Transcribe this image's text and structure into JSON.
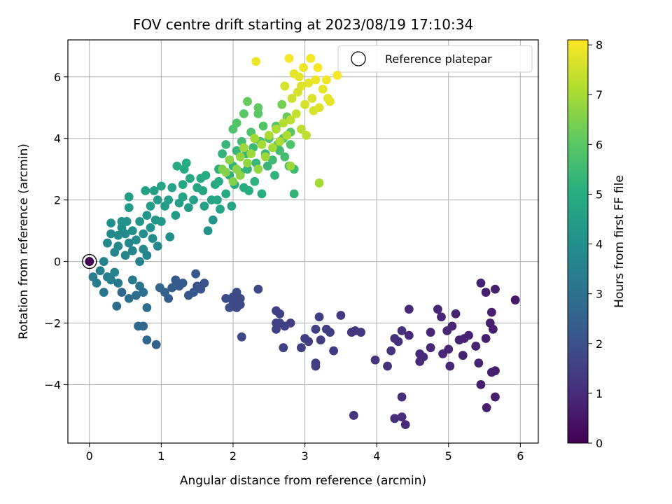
{
  "chart_data": {
    "type": "scatter",
    "title": "FOV centre drift starting at 2023/08/19 17:10:34",
    "xlabel": "Angular distance from reference (arcmin)",
    "ylabel": "Rotation from reference (arcmin)",
    "xlim": [
      -0.3,
      6.25
    ],
    "ylim": [
      -5.9,
      7.2
    ],
    "xticks": [
      0,
      1,
      2,
      3,
      4,
      5,
      6
    ],
    "yticks": [
      -4,
      -2,
      0,
      2,
      4,
      6
    ],
    "xtick_labels": [
      "0",
      "1",
      "2",
      "3",
      "4",
      "5",
      "6"
    ],
    "ytick_labels": [
      "−4",
      "−2",
      "0",
      "2",
      "4",
      "6"
    ],
    "grid": true,
    "colormap": "viridis",
    "colorbar": {
      "label": "Hours from first FF file",
      "range": [
        0,
        8.1
      ],
      "ticks": [
        0,
        1,
        2,
        3,
        4,
        5,
        6,
        7,
        8
      ],
      "tick_labels": [
        "0",
        "1",
        "2",
        "3",
        "4",
        "5",
        "6",
        "7",
        "8"
      ]
    },
    "legend": {
      "position": "top-right",
      "entries": [
        {
          "label": "Reference platepar",
          "marker": "open-circle",
          "color": "#000000"
        }
      ]
    },
    "reference_point": {
      "x": 0,
      "y": 0
    },
    "points": [
      [
        0.0,
        0.0,
        0.0
      ],
      [
        0.05,
        -0.5,
        3.4
      ],
      [
        0.1,
        -0.7,
        3.3
      ],
      [
        0.15,
        -0.3,
        3.5
      ],
      [
        0.2,
        -1.0,
        3.2
      ],
      [
        0.25,
        -0.5,
        3.4
      ],
      [
        0.3,
        -0.6,
        3.5
      ],
      [
        0.35,
        -0.35,
        3.6
      ],
      [
        0.4,
        -0.7,
        3.3
      ],
      [
        0.45,
        -1.0,
        2.7
      ],
      [
        0.38,
        -1.45,
        2.9
      ],
      [
        0.55,
        -1.2,
        3.0
      ],
      [
        0.6,
        -0.6,
        3.4
      ],
      [
        0.65,
        -1.1,
        2.9
      ],
      [
        0.7,
        -0.8,
        3.1
      ],
      [
        0.75,
        -1.0,
        3.0
      ],
      [
        0.68,
        -2.1,
        2.8
      ],
      [
        0.75,
        -2.1,
        2.8
      ],
      [
        0.8,
        -1.5,
        2.9
      ],
      [
        0.8,
        -2.55,
        2.7
      ],
      [
        0.93,
        -2.7,
        2.6
      ],
      [
        0.98,
        -0.85,
        2.6
      ],
      [
        1.05,
        -1.0,
        2.5
      ],
      [
        1.1,
        -1.2,
        2.4
      ],
      [
        1.15,
        -0.85,
        2.4
      ],
      [
        1.2,
        -0.6,
        2.3
      ],
      [
        1.25,
        -0.8,
        2.3
      ],
      [
        1.3,
        -0.7,
        2.3
      ],
      [
        1.38,
        -1.1,
        2.2
      ],
      [
        1.45,
        -1.0,
        2.2
      ],
      [
        1.48,
        -0.4,
        2.2
      ],
      [
        1.5,
        -0.8,
        2.1
      ],
      [
        1.55,
        -0.9,
        2.1
      ],
      [
        1.6,
        -0.7,
        2.1
      ],
      [
        1.9,
        -1.2,
        1.9
      ],
      [
        1.95,
        -1.5,
        1.9
      ],
      [
        2.0,
        -1.3,
        1.9
      ],
      [
        2.05,
        -1.0,
        1.9
      ],
      [
        2.1,
        -1.4,
        1.8
      ],
      [
        2.1,
        -1.2,
        1.8
      ],
      [
        2.05,
        -1.5,
        1.8
      ],
      [
        2.0,
        -1.15,
        1.8
      ],
      [
        2.12,
        -2.45,
        1.8
      ],
      [
        2.35,
        -0.9,
        1.8
      ],
      [
        2.6,
        -1.6,
        1.6
      ],
      [
        2.65,
        -1.7,
        1.6
      ],
      [
        2.6,
        -2.0,
        1.6
      ],
      [
        2.65,
        -2.0,
        1.6
      ],
      [
        2.6,
        -2.2,
        1.6
      ],
      [
        2.72,
        -2.1,
        1.6
      ],
      [
        2.8,
        -2.0,
        1.5
      ],
      [
        2.7,
        -2.8,
        1.6
      ],
      [
        2.95,
        -2.8,
        1.5
      ],
      [
        3.0,
        -2.5,
        1.5
      ],
      [
        3.05,
        -2.6,
        1.5
      ],
      [
        3.15,
        -2.2,
        1.5
      ],
      [
        3.15,
        -3.3,
        1.5
      ],
      [
        3.15,
        -3.4,
        1.5
      ],
      [
        3.2,
        -1.8,
        1.5
      ],
      [
        3.22,
        -2.55,
        1.5
      ],
      [
        3.3,
        -2.2,
        1.5
      ],
      [
        3.35,
        -2.3,
        1.5
      ],
      [
        3.4,
        -2.9,
        1.4
      ],
      [
        3.5,
        -1.75,
        1.4
      ],
      [
        3.65,
        -2.3,
        1.3
      ],
      [
        3.7,
        -2.25,
        1.3
      ],
      [
        3.78,
        -2.3,
        1.3
      ],
      [
        3.68,
        -5.0,
        1.3
      ],
      [
        3.98,
        -3.2,
        1.2
      ],
      [
        4.15,
        -3.4,
        1.2
      ],
      [
        4.2,
        -2.9,
        1.2
      ],
      [
        4.25,
        -2.5,
        1.1
      ],
      [
        4.3,
        -2.6,
        1.1
      ],
      [
        4.35,
        -2.25,
        1.1
      ],
      [
        4.25,
        -5.1,
        1.1
      ],
      [
        4.35,
        -5.05,
        1.1
      ],
      [
        4.35,
        -4.4,
        1.1
      ],
      [
        4.4,
        -5.3,
        1.0
      ],
      [
        4.45,
        -1.55,
        1.0
      ],
      [
        4.45,
        -2.4,
        1.0
      ],
      [
        4.6,
        -3.0,
        1.0
      ],
      [
        4.6,
        -3.25,
        1.0
      ],
      [
        4.65,
        -3.1,
        1.0
      ],
      [
        4.75,
        -2.3,
        0.9
      ],
      [
        4.75,
        -2.8,
        0.9
      ],
      [
        4.85,
        -1.55,
        0.9
      ],
      [
        4.9,
        -1.8,
        0.9
      ],
      [
        4.92,
        -3.0,
        0.9
      ],
      [
        4.98,
        -2.25,
        0.9
      ],
      [
        5.0,
        -2.85,
        0.9
      ],
      [
        5.02,
        -3.4,
        0.9
      ],
      [
        5.05,
        -2.1,
        0.9
      ],
      [
        5.1,
        -1.7,
        0.8
      ],
      [
        5.15,
        -2.55,
        0.8
      ],
      [
        5.2,
        -3.05,
        0.8
      ],
      [
        5.22,
        -2.5,
        0.8
      ],
      [
        5.28,
        -2.4,
        0.8
      ],
      [
        5.38,
        -2.75,
        0.8
      ],
      [
        5.42,
        -3.3,
        0.8
      ],
      [
        5.45,
        -4.0,
        0.7
      ],
      [
        5.45,
        -0.7,
        0.8
      ],
      [
        5.52,
        -1.0,
        0.7
      ],
      [
        5.52,
        -2.5,
        0.7
      ],
      [
        5.53,
        -4.75,
        0.7
      ],
      [
        5.58,
        -2.0,
        0.7
      ],
      [
        5.6,
        -3.6,
        0.7
      ],
      [
        5.6,
        -1.65,
        0.7
      ],
      [
        5.62,
        -2.2,
        0.7
      ],
      [
        5.65,
        -0.9,
        0.7
      ],
      [
        5.65,
        -3.55,
        0.7
      ],
      [
        5.65,
        -4.4,
        0.7
      ],
      [
        5.93,
        -1.25,
        0.6
      ],
      [
        0.2,
        0.0,
        3.6
      ],
      [
        0.25,
        0.6,
        3.8
      ],
      [
        0.3,
        0.9,
        3.9
      ],
      [
        0.3,
        1.25,
        4.1
      ],
      [
        0.35,
        0.3,
        3.7
      ],
      [
        0.4,
        0.5,
        3.8
      ],
      [
        0.4,
        0.85,
        3.9
      ],
      [
        0.45,
        1.1,
        4.0
      ],
      [
        0.45,
        1.3,
        4.1
      ],
      [
        0.5,
        0.2,
        3.7
      ],
      [
        0.5,
        0.9,
        3.9
      ],
      [
        0.52,
        1.3,
        4.2
      ],
      [
        0.55,
        0.6,
        3.8
      ],
      [
        0.55,
        1.75,
        4.4
      ],
      [
        0.55,
        2.1,
        4.5
      ],
      [
        0.6,
        0.35,
        3.7
      ],
      [
        0.6,
        1.0,
        4.0
      ],
      [
        0.65,
        0.7,
        3.9
      ],
      [
        0.7,
        0.0,
        3.6
      ],
      [
        0.7,
        1.3,
        4.2
      ],
      [
        0.75,
        0.4,
        3.8
      ],
      [
        0.75,
        0.9,
        4.0
      ],
      [
        0.78,
        2.3,
        4.6
      ],
      [
        0.8,
        1.5,
        4.3
      ],
      [
        0.8,
        0.2,
        3.7
      ],
      [
        0.85,
        1.1,
        4.1
      ],
      [
        0.85,
        1.8,
        4.5
      ],
      [
        0.88,
        0.75,
        3.9
      ],
      [
        0.9,
        2.3,
        4.6
      ],
      [
        0.92,
        1.35,
        4.3
      ],
      [
        0.95,
        0.5,
        3.8
      ],
      [
        0.95,
        2.0,
        4.5
      ],
      [
        1.0,
        1.3,
        4.3
      ],
      [
        1.0,
        2.45,
        4.7
      ],
      [
        1.05,
        1.8,
        4.5
      ],
      [
        1.1,
        2.0,
        4.6
      ],
      [
        1.12,
        0.8,
        4.0
      ],
      [
        1.15,
        2.4,
        4.7
      ],
      [
        1.2,
        1.5,
        4.4
      ],
      [
        1.22,
        3.1,
        5.0
      ],
      [
        1.25,
        1.9,
        4.6
      ],
      [
        1.3,
        2.1,
        4.7
      ],
      [
        1.3,
        2.5,
        4.8
      ],
      [
        1.32,
        3.0,
        5.0
      ],
      [
        1.35,
        3.2,
        5.0
      ],
      [
        1.38,
        1.75,
        4.5
      ],
      [
        1.4,
        2.7,
        4.9
      ],
      [
        1.45,
        2.0,
        4.6
      ],
      [
        1.5,
        2.4,
        4.8
      ],
      [
        1.55,
        2.7,
        4.9
      ],
      [
        1.58,
        2.3,
        4.8
      ],
      [
        1.6,
        1.8,
        4.6
      ],
      [
        1.62,
        2.8,
        5.0
      ],
      [
        1.65,
        1.0,
        4.2
      ],
      [
        1.7,
        2.0,
        4.7
      ],
      [
        1.72,
        1.35,
        4.3
      ],
      [
        1.75,
        2.5,
        4.9
      ],
      [
        1.78,
        2.0,
        4.8
      ],
      [
        1.8,
        3.0,
        5.1
      ],
      [
        1.8,
        2.6,
        5.0
      ],
      [
        1.82,
        1.7,
        4.7
      ],
      [
        1.85,
        3.5,
        5.3
      ],
      [
        1.9,
        2.2,
        4.9
      ],
      [
        1.9,
        3.8,
        5.4
      ],
      [
        1.95,
        2.8,
        5.1
      ],
      [
        1.98,
        1.8,
        4.8
      ],
      [
        2.0,
        3.1,
        5.2
      ],
      [
        2.0,
        4.3,
        5.8
      ],
      [
        2.02,
        2.5,
        5.0
      ],
      [
        2.05,
        3.6,
        5.4
      ],
      [
        2.05,
        4.5,
        5.9
      ],
      [
        2.1,
        2.9,
        5.2
      ],
      [
        2.12,
        3.9,
        5.6
      ],
      [
        2.15,
        2.4,
        5.0
      ],
      [
        2.15,
        4.8,
        6.0
      ],
      [
        2.18,
        3.5,
        5.4
      ],
      [
        2.2,
        5.2,
        6.2
      ],
      [
        2.2,
        3.0,
        5.3
      ],
      [
        2.22,
        2.3,
        5.1
      ],
      [
        2.25,
        4.2,
        5.8
      ],
      [
        2.28,
        3.7,
        5.5
      ],
      [
        2.3,
        2.6,
        5.2
      ],
      [
        2.32,
        3.2,
        5.4
      ],
      [
        2.35,
        4.8,
        6.0
      ],
      [
        2.35,
        5.0,
        6.1
      ],
      [
        2.38,
        3.9,
        5.7
      ],
      [
        2.4,
        2.2,
        5.1
      ],
      [
        2.42,
        4.4,
        5.9
      ],
      [
        2.45,
        3.5,
        5.5
      ],
      [
        2.48,
        3.1,
        5.4
      ],
      [
        2.5,
        4.0,
        5.8
      ],
      [
        2.55,
        3.3,
        5.5
      ],
      [
        2.58,
        2.8,
        5.3
      ],
      [
        2.6,
        4.4,
        6.0
      ],
      [
        2.62,
        3.8,
        5.7
      ],
      [
        2.65,
        3.6,
        5.6
      ],
      [
        2.68,
        5.1,
        6.4
      ],
      [
        2.7,
        4.0,
        5.9
      ],
      [
        2.72,
        3.4,
        5.6
      ],
      [
        2.75,
        4.7,
        6.2
      ],
      [
        2.78,
        3.1,
        5.5
      ],
      [
        2.8,
        4.2,
        6.0
      ],
      [
        2.8,
        3.8,
        5.8
      ],
      [
        2.85,
        3.0,
        5.5
      ],
      [
        2.85,
        2.2,
        5.3
      ],
      [
        1.85,
        3.0,
        6.5
      ],
      [
        1.9,
        2.9,
        6.6
      ],
      [
        1.95,
        3.3,
        6.7
      ],
      [
        2.0,
        2.6,
        6.6
      ],
      [
        2.05,
        3.0,
        6.7
      ],
      [
        2.1,
        3.4,
        6.8
      ],
      [
        2.1,
        2.8,
        6.7
      ],
      [
        2.15,
        3.7,
        6.9
      ],
      [
        2.2,
        3.2,
        6.8
      ],
      [
        2.25,
        3.5,
        6.9
      ],
      [
        2.3,
        4.0,
        7.0
      ],
      [
        2.32,
        6.5,
        7.9
      ],
      [
        2.35,
        3.0,
        6.8
      ],
      [
        2.4,
        3.8,
        7.0
      ],
      [
        2.45,
        3.4,
        6.9
      ],
      [
        2.5,
        4.1,
        7.1
      ],
      [
        2.55,
        3.7,
        7.0
      ],
      [
        2.6,
        4.3,
        7.1
      ],
      [
        2.65,
        3.9,
        7.1
      ],
      [
        2.7,
        4.5,
        7.2
      ],
      [
        2.72,
        5.7,
        7.6
      ],
      [
        2.75,
        4.1,
        7.1
      ],
      [
        2.78,
        6.6,
        8.0
      ],
      [
        2.8,
        3.1,
        6.9
      ],
      [
        2.8,
        4.6,
        7.3
      ],
      [
        2.82,
        5.3,
        7.5
      ],
      [
        2.85,
        6.1,
        7.8
      ],
      [
        2.88,
        4.8,
        7.4
      ],
      [
        2.9,
        5.5,
        7.6
      ],
      [
        2.92,
        6.0,
        7.8
      ],
      [
        2.95,
        4.3,
        7.3
      ],
      [
        2.98,
        6.3,
        7.9
      ],
      [
        3.0,
        5.1,
        7.6
      ],
      [
        3.02,
        4.1,
        7.3
      ],
      [
        3.05,
        5.8,
        7.8
      ],
      [
        3.08,
        6.6,
        8.0
      ],
      [
        3.1,
        5.3,
        7.7
      ],
      [
        3.12,
        4.9,
        7.6
      ],
      [
        3.15,
        5.9,
        7.9
      ],
      [
        3.18,
        6.3,
        8.0
      ],
      [
        3.2,
        5.0,
        7.7
      ],
      [
        3.2,
        2.55,
        7.0
      ],
      [
        3.25,
        5.6,
        7.8
      ],
      [
        3.3,
        5.9,
        7.9
      ],
      [
        3.32,
        5.3,
        7.8
      ],
      [
        3.35,
        5.2,
        7.8
      ],
      [
        3.45,
        6.05,
        8.0
      ],
      [
        2.95,
        5.7,
        7.7
      ]
    ]
  }
}
